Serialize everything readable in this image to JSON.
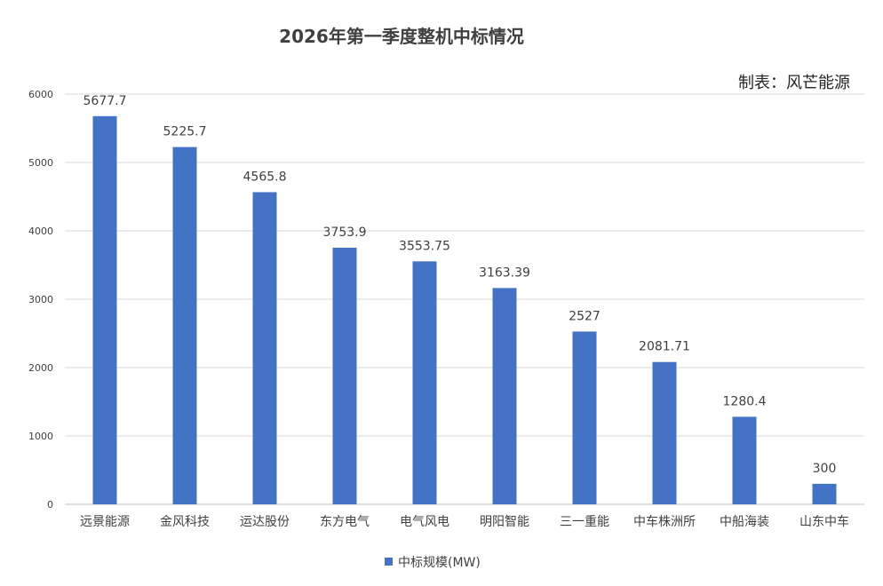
{
  "chart_data": {
    "type": "bar",
    "title": "2026年第一季度整机中标情况",
    "source_note": "制表：风芒能源",
    "categories": [
      "远景能源",
      "金风科技",
      "运达股份",
      "东方电气",
      "电气风电",
      "明阳智能",
      "三一重能",
      "中车株洲所",
      "中船海装",
      "山东中车"
    ],
    "series": [
      {
        "name": "中标规模(MW)",
        "values": [
          5677.7,
          5225.7,
          4565.8,
          3753.9,
          3553.75,
          3163.39,
          2527,
          2081.71,
          1280.4,
          300
        ],
        "value_labels": [
          "5677.7",
          "5225.7",
          "4565.8",
          "3753.9",
          "3553.75",
          "3163.39",
          "2527",
          "2081.71",
          "1280.4",
          "300"
        ],
        "color": "#4472c4"
      }
    ],
    "yticks": [
      "0",
      "1000",
      "2000",
      "3000",
      "4000",
      "5000",
      "6000"
    ],
    "ylim": [
      0,
      6000
    ],
    "grid": true,
    "legend_position": "bottom"
  }
}
